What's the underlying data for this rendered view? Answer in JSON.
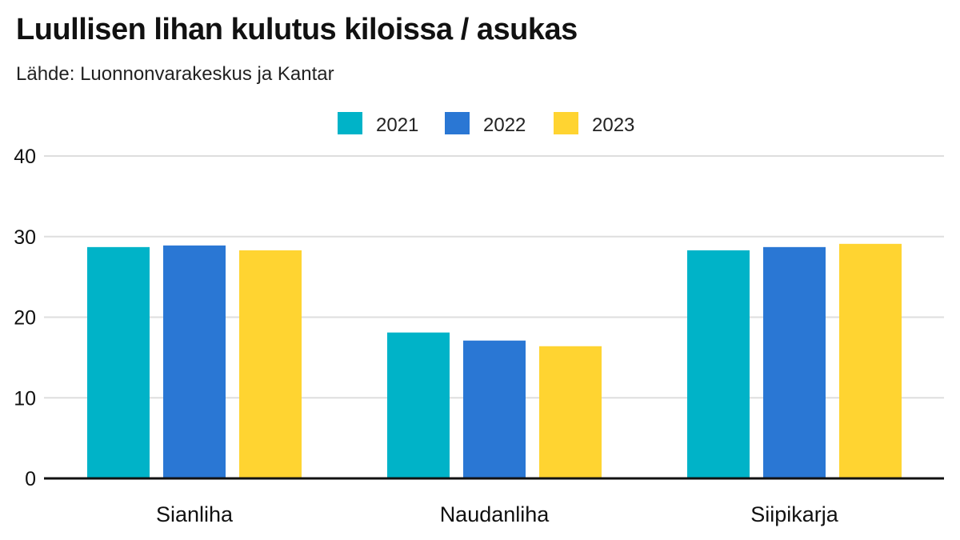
{
  "header": {
    "title": "Luullisen lihan kulutus kiloissa / asukas",
    "subtitle": "Lähde: Luonnonvarakeskus ja Kantar"
  },
  "colors": {
    "2021": "#00b3c8",
    "2022": "#2a77d4",
    "2023": "#ffd431"
  },
  "chart_data": {
    "type": "bar",
    "title": "Luullisen lihan kulutus kiloissa / asukas",
    "subtitle": "Lähde: Luonnonvarakeskus ja Kantar",
    "xlabel": "",
    "ylabel": "",
    "categories": [
      "Sianliha",
      "Naudanliha",
      "Siipikarja"
    ],
    "series": [
      {
        "name": "2021",
        "values": [
          28.7,
          18.1,
          28.3
        ]
      },
      {
        "name": "2022",
        "values": [
          28.9,
          17.1,
          28.7
        ]
      },
      {
        "name": "2023",
        "values": [
          28.3,
          16.4,
          29.1
        ]
      }
    ],
    "ylim": [
      0,
      40
    ],
    "yticks": [
      0,
      10,
      20,
      30,
      40
    ],
    "grid": true,
    "legend_position": "top-center"
  }
}
